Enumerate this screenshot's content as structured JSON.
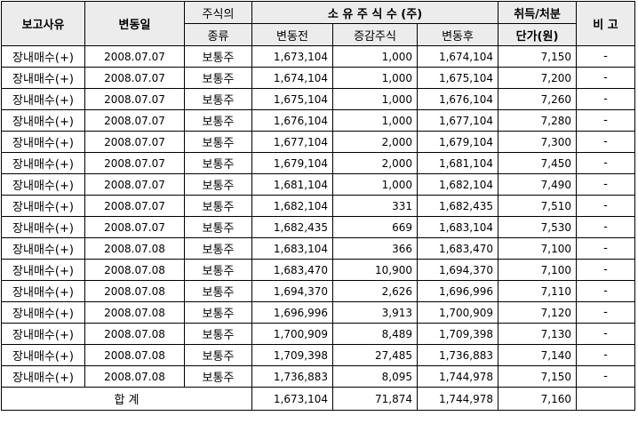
{
  "headers": {
    "reason": "보고사유",
    "date": "변동일",
    "stock_type_line1": "주식의",
    "stock_type_line2": "종류",
    "holdings_group": "소 유 주 식 수 (주)",
    "before": "변동전",
    "change": "증감주식",
    "after": "변동후",
    "price_line1": "취득/처분",
    "price_line2": "단가(원)",
    "remarks": "비 고"
  },
  "rows": [
    {
      "reason": "장내매수(+)",
      "date": "2008.07.07",
      "type": "보통주",
      "before": "1,673,104",
      "change": "1,000",
      "after": "1,674,104",
      "price": "7,150",
      "remarks": "-"
    },
    {
      "reason": "장내매수(+)",
      "date": "2008.07.07",
      "type": "보통주",
      "before": "1,674,104",
      "change": "1,000",
      "after": "1,675,104",
      "price": "7,200",
      "remarks": "-"
    },
    {
      "reason": "장내매수(+)",
      "date": "2008.07.07",
      "type": "보통주",
      "before": "1,675,104",
      "change": "1,000",
      "after": "1,676,104",
      "price": "7,260",
      "remarks": "-"
    },
    {
      "reason": "장내매수(+)",
      "date": "2008.07.07",
      "type": "보통주",
      "before": "1,676,104",
      "change": "1,000",
      "after": "1,677,104",
      "price": "7,280",
      "remarks": "-"
    },
    {
      "reason": "장내매수(+)",
      "date": "2008.07.07",
      "type": "보통주",
      "before": "1,677,104",
      "change": "2,000",
      "after": "1,679,104",
      "price": "7,300",
      "remarks": "-"
    },
    {
      "reason": "장내매수(+)",
      "date": "2008.07.07",
      "type": "보통주",
      "before": "1,679,104",
      "change": "2,000",
      "after": "1,681,104",
      "price": "7,450",
      "remarks": "-"
    },
    {
      "reason": "장내매수(+)",
      "date": "2008.07.07",
      "type": "보통주",
      "before": "1,681,104",
      "change": "1,000",
      "after": "1,682,104",
      "price": "7,490",
      "remarks": "-"
    },
    {
      "reason": "장내매수(+)",
      "date": "2008.07.07",
      "type": "보통주",
      "before": "1,682,104",
      "change": "331",
      "after": "1,682,435",
      "price": "7,510",
      "remarks": "-"
    },
    {
      "reason": "장내매수(+)",
      "date": "2008.07.07",
      "type": "보통주",
      "before": "1,682,435",
      "change": "669",
      "after": "1,683,104",
      "price": "7,530",
      "remarks": "-"
    },
    {
      "reason": "장내매수(+)",
      "date": "2008.07.08",
      "type": "보통주",
      "before": "1,683,104",
      "change": "366",
      "after": "1,683,470",
      "price": "7,100",
      "remarks": "-"
    },
    {
      "reason": "장내매수(+)",
      "date": "2008.07.08",
      "type": "보통주",
      "before": "1,683,470",
      "change": "10,900",
      "after": "1,694,370",
      "price": "7,100",
      "remarks": "-"
    },
    {
      "reason": "장내매수(+)",
      "date": "2008.07.08",
      "type": "보통주",
      "before": "1,694,370",
      "change": "2,626",
      "after": "1,696,996",
      "price": "7,110",
      "remarks": "-"
    },
    {
      "reason": "장내매수(+)",
      "date": "2008.07.08",
      "type": "보통주",
      "before": "1,696,996",
      "change": "3,913",
      "after": "1,700,909",
      "price": "7,120",
      "remarks": "-"
    },
    {
      "reason": "장내매수(+)",
      "date": "2008.07.08",
      "type": "보통주",
      "before": "1,700,909",
      "change": "8,489",
      "after": "1,709,398",
      "price": "7,130",
      "remarks": "-"
    },
    {
      "reason": "장내매수(+)",
      "date": "2008.07.08",
      "type": "보통주",
      "before": "1,709,398",
      "change": "27,485",
      "after": "1,736,883",
      "price": "7,140",
      "remarks": "-"
    },
    {
      "reason": "장내매수(+)",
      "date": "2008.07.08",
      "type": "보통주",
      "before": "1,736,883",
      "change": "8,095",
      "after": "1,744,978",
      "price": "7,150",
      "remarks": "-"
    }
  ],
  "total": {
    "label": "합 계",
    "before": "1,673,104",
    "change": "71,874",
    "after": "1,744,978",
    "price": "7,160",
    "remarks": ""
  }
}
